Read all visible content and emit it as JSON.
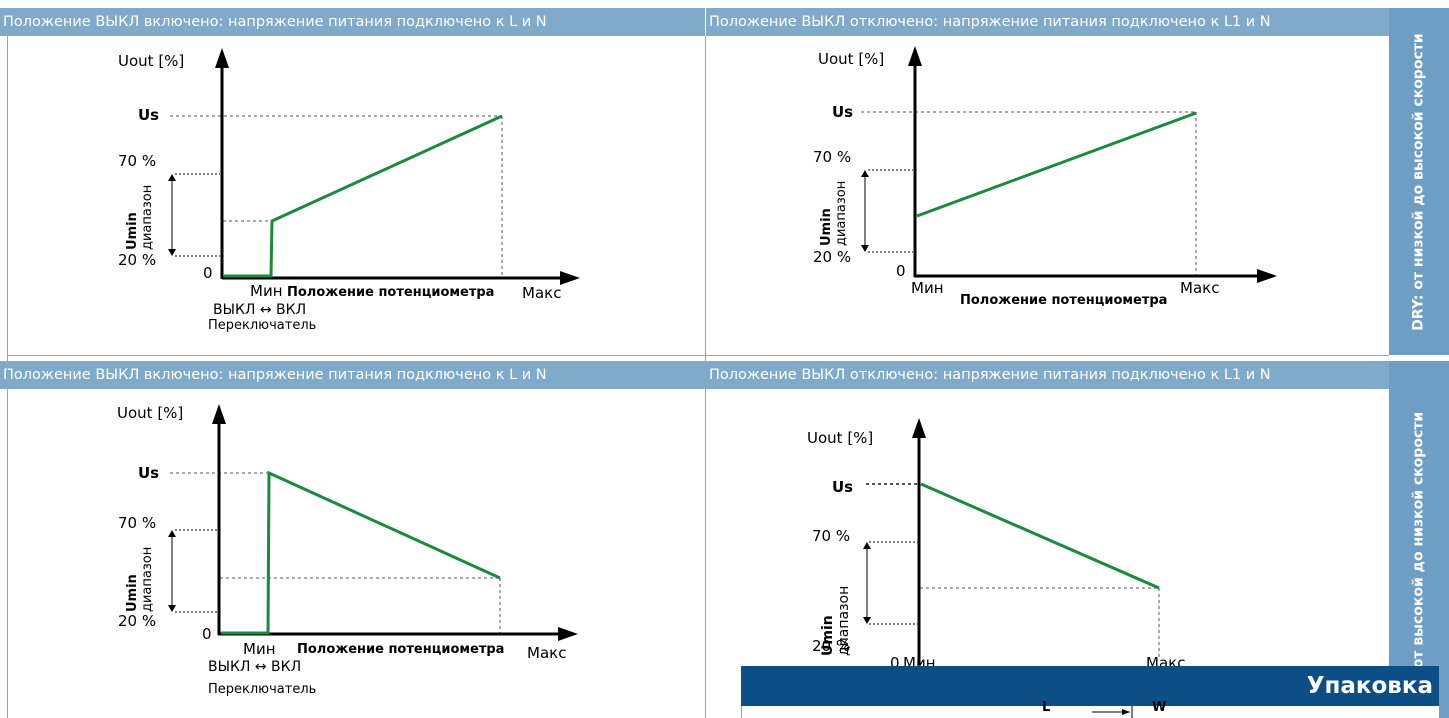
{
  "panels": {
    "tl": {
      "header": "Положение ВЫКЛ включено: напряжение питания подключено к L и N"
    },
    "tr": {
      "header": "Положение ВЫКЛ отключено: напряжение питания подключено к L1 и N"
    },
    "bl": {
      "header": "Положение ВЫКЛ включено: напряжение питания подключено к L и N"
    },
    "br": {
      "header": "Положение ВЫКЛ отключено: напряжение питания подключено к L1 и N"
    }
  },
  "sidebar": {
    "dry": "DRY: от низкой до высокой скорости",
    "wet": "от высокой до низкой скорости"
  },
  "chart_labels": {
    "y_axis": "Uout [%]",
    "us": "Us",
    "p70": "70 %",
    "p20": "20 %",
    "zero": "0",
    "umin": "Umin",
    "range": "диапазон",
    "min": "Мин",
    "max": "Макс",
    "x_axis": "Положение потенциометра",
    "switch": "ВЫКЛ ↔ ВКЛ",
    "switch_caption": "Переключатель"
  },
  "packaging": {
    "title": "Упаковка",
    "dim_l": "L",
    "dim_w": "W"
  },
  "colors": {
    "line": "#1a8a3c",
    "header": "#7faac9",
    "pack": "#0c4f86"
  },
  "chart_data": [
    {
      "type": "line",
      "panel": "top-left",
      "series": [
        {
          "values_pct_of_Us": [
            [
              0,
              0
            ],
            [
              0.18,
              0
            ],
            [
              0.18,
              0.37
            ],
            [
              1,
              1
            ]
          ]
        }
      ]
    },
    {
      "type": "line",
      "panel": "top-right",
      "series": [
        {
          "values_pct_of_Us": [
            [
              0,
              0.37
            ],
            [
              1,
              1
            ]
          ]
        }
      ]
    },
    {
      "type": "line",
      "panel": "bottom-left",
      "series": [
        {
          "values_pct_of_Us": [
            [
              0,
              0
            ],
            [
              0.18,
              0
            ],
            [
              0.18,
              1
            ],
            [
              1,
              0.37
            ]
          ]
        }
      ]
    },
    {
      "type": "line",
      "panel": "bottom-right",
      "series": [
        {
          "values_pct_of_Us": [
            [
              0,
              1
            ],
            [
              1,
              0.37
            ]
          ]
        }
      ]
    }
  ]
}
